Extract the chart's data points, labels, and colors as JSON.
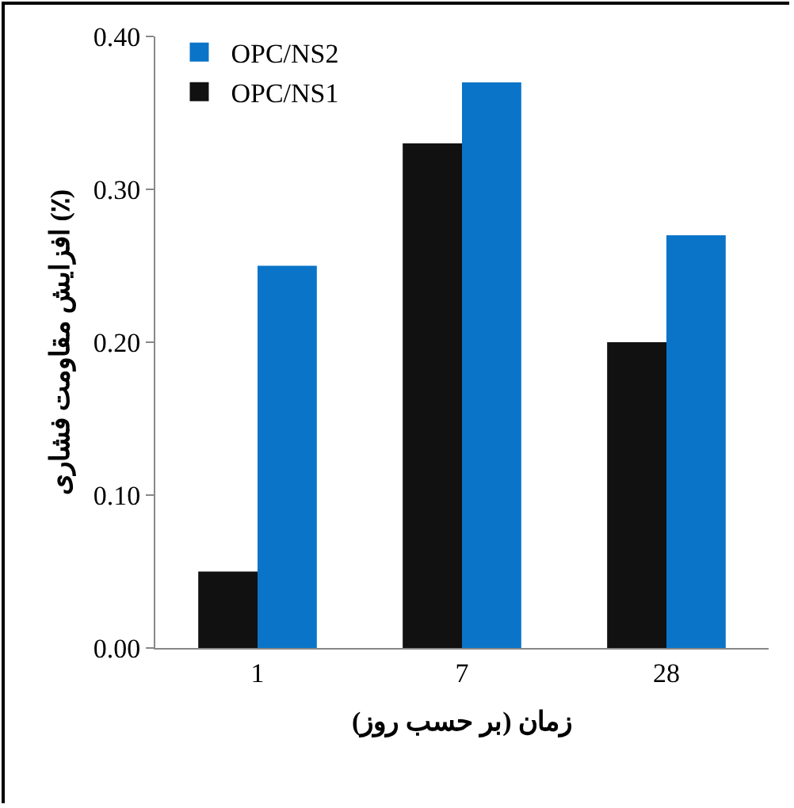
{
  "chart_data": {
    "type": "bar",
    "xlabel": "زمان (بر حسب روز)",
    "ylabel": "افزایش مقاومت فشاری (٪)",
    "categories": [
      "1",
      "7",
      "28"
    ],
    "series": [
      {
        "name": "OPC/NS1",
        "color": "#111111",
        "values": [
          0.05,
          0.33,
          0.2
        ]
      },
      {
        "name": "OPC/NS2",
        "color": "#0a74c8",
        "values": [
          0.25,
          0.37,
          0.27
        ]
      }
    ],
    "ylim": [
      0,
      0.4
    ],
    "yticks": [
      {
        "value": 0,
        "label": "0.00"
      },
      {
        "value": 0.1,
        "label": "0.10"
      },
      {
        "value": 0.2,
        "label": "0.20"
      },
      {
        "value": 0.3,
        "label": "0.30"
      },
      {
        "value": 0.4,
        "label": "0.40"
      }
    ],
    "grid": false,
    "legend": "top left"
  }
}
